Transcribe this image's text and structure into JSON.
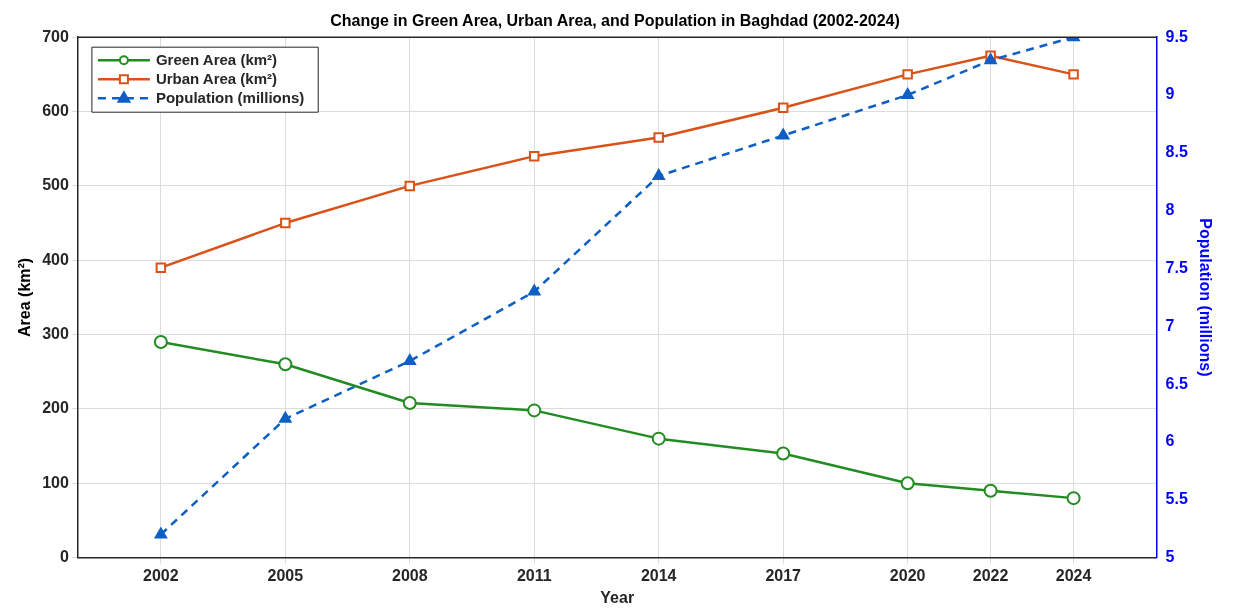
{
  "chart_data": {
    "type": "line",
    "title": "Change in Green Area, Urban Area, and Population in Baghdad (2002-2024)",
    "xlabel": "Year",
    "ylabel": "Area (km²)",
    "y2label": "Population (millions)",
    "x": [
      2002,
      2005,
      2008,
      2011,
      2014,
      2017,
      2020,
      2022,
      2024
    ],
    "xlim": [
      2000,
      2026
    ],
    "xticks": [
      2002,
      2005,
      2008,
      2011,
      2014,
      2017,
      2020,
      2022,
      2024
    ],
    "ylim": [
      0,
      700
    ],
    "yticks": [
      0,
      100,
      200,
      300,
      400,
      500,
      600,
      700
    ],
    "y2lim": [
      5,
      9.5
    ],
    "y2ticks": [
      5,
      5.5,
      6,
      6.5,
      7,
      7.5,
      8,
      8.5,
      9,
      9.5
    ],
    "grid": true,
    "legend": "top left",
    "series": [
      {
        "name": "Green Area (km²)",
        "color": "#228b22",
        "marker": "circle",
        "line_style": "solid",
        "values": [
          290,
          260,
          208,
          198,
          160,
          140,
          100,
          90,
          80
        ]
      },
      {
        "name": "Urban Area (km²)",
        "color": "#d95319",
        "marker": "square",
        "line_style": "solid",
        "values": [
          390,
          450,
          500,
          540,
          565,
          605,
          650,
          675,
          650
        ]
      },
      {
        "name": "Population (millions)",
        "color": "#0d5fc4",
        "marker": "triangle",
        "line_style": "dashed",
        "axis": "y2",
        "values": [
          5.2,
          6.2,
          6.7,
          7.3,
          8.3,
          8.65,
          9.0,
          9.3,
          9.5
        ]
      }
    ]
  }
}
